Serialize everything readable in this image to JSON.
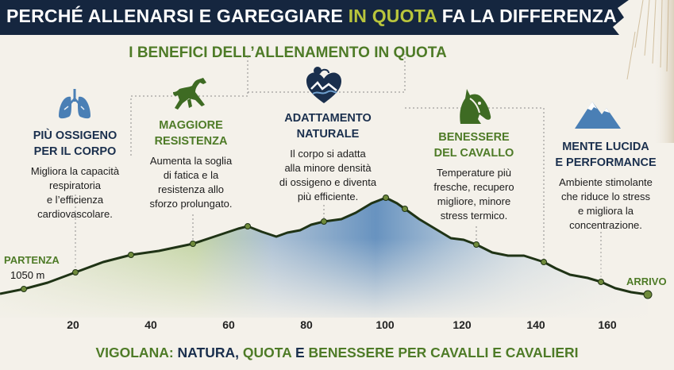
{
  "banner": {
    "title_prefix": "PERCHÉ ALLENARSI E GAREGGIARE ",
    "title_highlight": "IN QUOTA",
    "title_suffix": " FA LA DIFFERENZA"
  },
  "subtitle": "I BENEFICI DELL’ALLENAMENTO IN QUOTA",
  "columns": [
    {
      "icon": "lungs-icon",
      "title": "PIÙ OSSIGENO\nPER IL CORPO",
      "body": "Migliora la capacità\nrespiratoria\ne l’efficienza\ncardiovascolare."
    },
    {
      "icon": "horse-icon",
      "title": "MAGGIORE\nRESISTENZA",
      "body": "Aumenta la soglia\ndi fatica e la\nresistenza allo\nsforzo prolungato."
    },
    {
      "icon": "heart-icon",
      "title": "ADATTAMENTO\nNATURALE",
      "body": "Il corpo si adatta\nalla minore densità\ndi ossigeno e diventa\npiù efficiente."
    },
    {
      "icon": "horse-head-icon",
      "title": "BENESSERE\nDEL CAVALLO",
      "body": "Temperature più\nfresche, recupero\nmigliore, minore\nstress termico."
    },
    {
      "icon": "mountain-icon",
      "title": "MENTE LUCIDA\nE PERFORMANCE",
      "body": "Ambiente stimolante\nche riduce lo stress\ne migliora la\nconcentrazione."
    }
  ],
  "start_label": "PARTENZA",
  "start_elevation": "1050 m",
  "end_label": "ARRIVO",
  "x_ticks": [
    "20",
    "40",
    "60",
    "80",
    "100",
    "120",
    "140",
    "160"
  ],
  "footer": {
    "part1": "VIGOLANA: ",
    "part2": "NATURA, ",
    "part3": "QUOTA ",
    "part4": "E ",
    "part5": "BENESSERE PER CAVALLI E CAVALIERI"
  },
  "colors": {
    "banner": "#15263f",
    "highlight": "#b9c53c",
    "green": "#4e7b27",
    "navy": "#1a2f4d",
    "profile_line": "#1f3315",
    "fill_green": "#9cbd6c",
    "fill_blue": "#4f82b8"
  }
}
